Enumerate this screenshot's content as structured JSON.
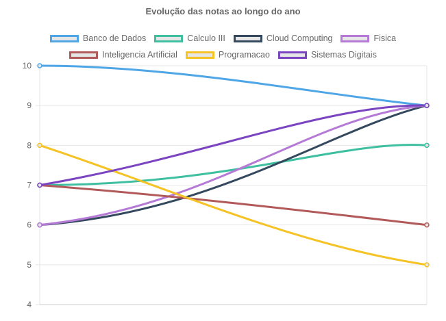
{
  "chart_data": {
    "type": "line",
    "title": "Evolução das notas ao longo do ano",
    "xlabel": "",
    "ylabel": "",
    "ylim": [
      4,
      10
    ],
    "yticks": [
      "10",
      "9",
      "8",
      "7",
      "6",
      "5",
      "4"
    ],
    "grid": true,
    "legend_position": "top",
    "series": [
      {
        "name": "Banco de Dados",
        "color": "#4ea6e6",
        "values": [
          10,
          9
        ]
      },
      {
        "name": "Calculo III",
        "color": "#3ebfa0",
        "values": [
          7,
          8
        ]
      },
      {
        "name": "Cloud Computing",
        "color": "#34495e",
        "values": [
          6,
          9
        ]
      },
      {
        "name": "Fisica",
        "color": "#b57ad6",
        "values": [
          6,
          9
        ]
      },
      {
        "name": "Inteligencia Artificial",
        "color": "#b25a5a",
        "values": [
          7,
          6
        ]
      },
      {
        "name": "Programacao",
        "color": "#f5c325",
        "values": [
          8,
          5
        ]
      },
      {
        "name": "Sistemas Digitais",
        "color": "#7b45c2",
        "values": [
          7,
          9
        ]
      }
    ]
  }
}
